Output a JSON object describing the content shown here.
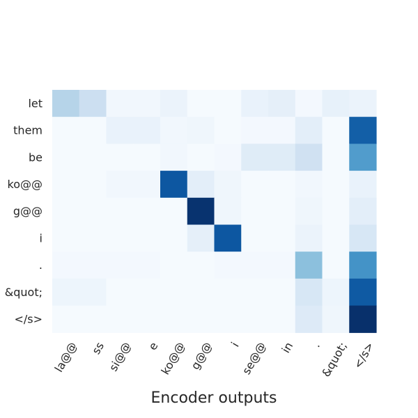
{
  "chart_data": {
    "type": "heatmap",
    "title": "",
    "xlabel": "Encoder outputs",
    "ylabel": "",
    "x_labels": [
      "la@@",
      "ss",
      "si@@",
      "e",
      "ko@@",
      "g@@",
      "i",
      "se@@",
      "in",
      ".",
      "&quot;",
      "</s>"
    ],
    "y_labels": [
      "let",
      "them",
      "be",
      "ko@@",
      "g@@",
      "i",
      ".",
      "&quot;",
      "</s>"
    ],
    "colormap": "Blues",
    "value_range": [
      0,
      1
    ],
    "values": [
      [
        0.3,
        0.22,
        0.03,
        0.03,
        0.06,
        0.01,
        0.01,
        0.07,
        0.09,
        0.02,
        0.08,
        0.06
      ],
      [
        0.01,
        0.01,
        0.07,
        0.07,
        0.03,
        0.04,
        0.01,
        0.02,
        0.02,
        0.1,
        0.01,
        0.82
      ],
      [
        0.01,
        0.01,
        0.01,
        0.01,
        0.03,
        0.01,
        0.02,
        0.12,
        0.12,
        0.2,
        0.01,
        0.58
      ],
      [
        0.01,
        0.01,
        0.03,
        0.03,
        0.85,
        0.1,
        0.04,
        0.01,
        0.01,
        0.03,
        0.01,
        0.07
      ],
      [
        0.01,
        0.01,
        0.01,
        0.01,
        0.01,
        0.99,
        0.04,
        0.01,
        0.01,
        0.04,
        0.01,
        0.1
      ],
      [
        0.01,
        0.01,
        0.01,
        0.01,
        0.01,
        0.09,
        0.85,
        0.01,
        0.01,
        0.06,
        0.01,
        0.16
      ],
      [
        0.02,
        0.02,
        0.02,
        0.02,
        0.01,
        0.01,
        0.02,
        0.02,
        0.02,
        0.42,
        0.01,
        0.62
      ],
      [
        0.05,
        0.05,
        0.01,
        0.01,
        0.01,
        0.01,
        0.01,
        0.01,
        0.01,
        0.16,
        0.05,
        0.84
      ],
      [
        0.01,
        0.01,
        0.01,
        0.01,
        0.01,
        0.01,
        0.01,
        0.01,
        0.01,
        0.13,
        0.04,
        1.0
      ]
    ]
  }
}
